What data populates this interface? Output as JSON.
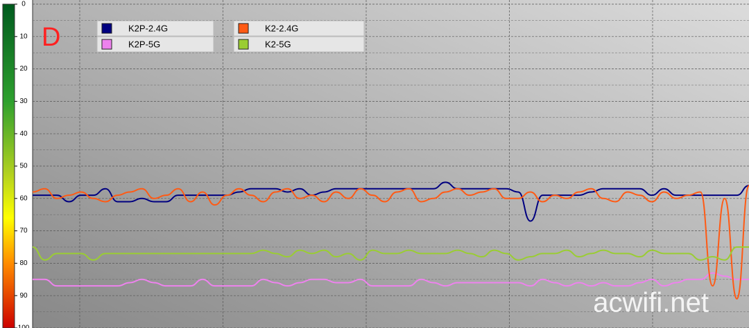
{
  "chart_data": {
    "type": "line",
    "panel_label": "D",
    "watermark": "acwifi.net",
    "ylim": [
      0,
      100
    ],
    "yticks": [
      0,
      10,
      20,
      30,
      40,
      50,
      60,
      70,
      80,
      90,
      100
    ],
    "y_inverted": true,
    "grid": true,
    "series": [
      {
        "name": "K2P-2.4G",
        "color": "#000080",
        "values": [
          59,
          59,
          59,
          61,
          59,
          59,
          57,
          61,
          61,
          60,
          61,
          61,
          59,
          59,
          59,
          59,
          59,
          58,
          57,
          57,
          57,
          58,
          57,
          59,
          58,
          57,
          57,
          57,
          57,
          57,
          57,
          57,
          57,
          57,
          55,
          57,
          57,
          57,
          57,
          57,
          58,
          67,
          59,
          59,
          59,
          59,
          58,
          57,
          57,
          57,
          57,
          59,
          57,
          59,
          59,
          59,
          59,
          59,
          59,
          56
        ]
      },
      {
        "name": "K2P-5G",
        "color": "#ee82ee",
        "values": [
          85,
          85,
          87,
          87,
          87,
          87,
          87,
          87,
          86,
          85,
          86,
          87,
          87,
          87,
          85,
          87,
          87,
          87,
          87,
          85,
          86,
          87,
          86,
          85,
          85,
          86,
          86,
          85,
          87,
          87,
          87,
          87,
          85,
          86,
          87,
          86,
          86,
          86,
          86,
          86,
          86,
          87,
          85,
          86,
          87,
          86,
          87,
          86,
          87,
          87,
          86,
          85,
          87,
          86,
          85,
          85,
          83,
          84,
          85,
          85
        ]
      },
      {
        "name": "K2-2.4G",
        "color": "#ff5a14",
        "values": [
          58,
          57,
          60,
          59,
          58,
          60,
          61,
          59,
          58,
          57,
          60,
          59,
          57,
          61,
          58,
          62,
          59,
          57,
          59,
          61,
          58,
          57,
          60,
          59,
          61,
          58,
          60,
          57,
          59,
          61,
          58,
          57,
          61,
          60,
          58,
          57,
          59,
          58,
          57,
          60,
          60,
          58,
          61,
          59,
          60,
          58,
          57,
          60,
          61,
          58,
          59,
          61,
          58,
          60,
          59,
          58,
          87,
          60,
          91,
          56
        ]
      },
      {
        "name": "K2-5G",
        "color": "#9acd32",
        "values": [
          75,
          79,
          77,
          77,
          77,
          79,
          77,
          77,
          77,
          77,
          77,
          77,
          77,
          77,
          77,
          77,
          77,
          77,
          77,
          76,
          77,
          78,
          76,
          77,
          76,
          78,
          77,
          79,
          76,
          77,
          77,
          76,
          77,
          77,
          77,
          76,
          77,
          78,
          76,
          77,
          79,
          78,
          77,
          77,
          76,
          78,
          77,
          76,
          77,
          77,
          78,
          76,
          77,
          77,
          77,
          79,
          78,
          79,
          75,
          75
        ]
      }
    ]
  }
}
